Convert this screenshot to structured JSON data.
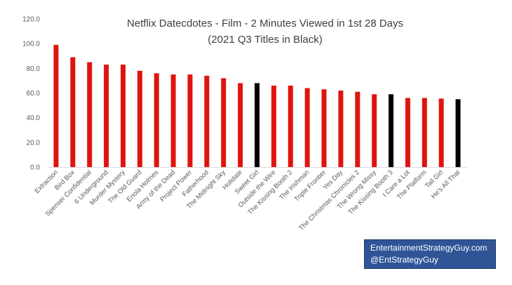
{
  "chart_data": {
    "type": "bar",
    "title": "Netflix Datecdotes - Film - 2 Minutes Viewed in 1st 28 Days",
    "subtitle": "(2021 Q3 Titles in Black)",
    "xlabel": "",
    "ylabel": "",
    "ylim": [
      0,
      120
    ],
    "yticks": [
      "0.0",
      "20.0",
      "40.0",
      "60.0",
      "80.0",
      "100.0",
      "120.0"
    ],
    "grid": false,
    "legend": "none",
    "colors": {
      "default": "#e0140f",
      "highlight": "#000000"
    },
    "categories": [
      "Extraction",
      "Bird Box",
      "Spenser Confidential",
      "6 Underground",
      "Murder Mystery",
      "The Old Guard",
      "Enola Holmes",
      "Army of the Dead",
      "Project Power",
      "Fatherhood",
      "The Midnight Sky",
      "Holidate",
      "Sweet Girl",
      "Outside the Wire",
      "The Kissing Booth 2",
      "The Irishman",
      "Triple Frontier",
      "Yes Day",
      "The Christmas Chronicles 2",
      "The Wrong Missy",
      "The Kissing Booth 3",
      "I Care a Lot",
      "The Platform",
      "Tall Girl",
      "He's All That"
    ],
    "values": [
      99,
      89,
      85,
      83,
      83,
      78,
      76,
      75,
      75,
      74,
      72,
      68,
      68,
      66,
      66,
      64,
      63,
      62,
      61,
      59,
      59,
      56,
      56,
      55.5,
      55
    ],
    "highlight": [
      false,
      false,
      false,
      false,
      false,
      false,
      false,
      false,
      false,
      false,
      false,
      false,
      true,
      false,
      false,
      false,
      false,
      false,
      false,
      false,
      true,
      false,
      false,
      false,
      true
    ]
  },
  "credit": {
    "line1": "EntertainmentStrategyGuy.com",
    "line2": "@EntStrategyGuy"
  }
}
